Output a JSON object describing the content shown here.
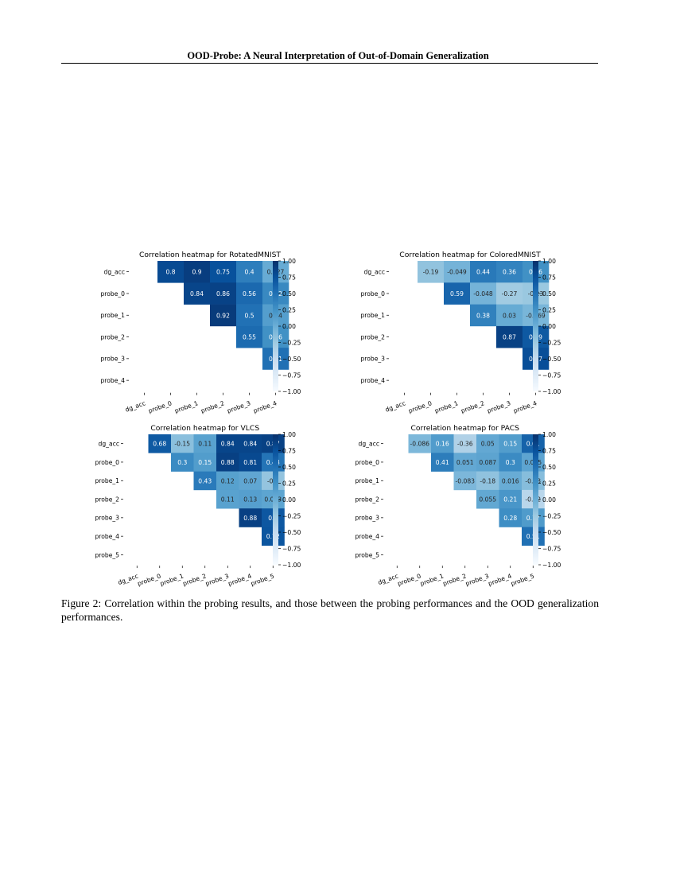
{
  "header": {
    "title": "OOD-Probe: A Neural Interpretation of Out-of-Domain Generalization"
  },
  "caption": {
    "text": "Figure 2: Correlation within the probing results, and those between the probing performances and the OOD generalization performances."
  },
  "colorbar_ticks": [
    "1.00",
    "0.75",
    "0.50",
    "0.25",
    "0.00",
    "−0.25",
    "−0.50",
    "−0.75",
    "−1.00"
  ],
  "palette": {
    "low": "#f7fbff",
    "mid": "#6baed6",
    "high": "#08306b"
  },
  "chart_data": [
    {
      "type": "heatmap",
      "title": "Correlation heatmap for RotatedMNIST",
      "rows": [
        "dg_acc",
        "probe_0",
        "probe_1",
        "probe_2",
        "probe_3",
        "probe_4"
      ],
      "cols": [
        "dg_acc",
        "probe_0",
        "probe_1",
        "probe_2",
        "probe_3",
        "probe_4"
      ],
      "values": [
        [
          null,
          0.8,
          0.9,
          0.75,
          0.4,
          0.027
        ],
        [
          null,
          null,
          0.84,
          0.86,
          0.56,
          0.32
        ],
        [
          null,
          null,
          null,
          0.92,
          0.5,
          0.14
        ],
        [
          null,
          null,
          null,
          null,
          0.55,
          0.26
        ],
        [
          null,
          null,
          null,
          null,
          null,
          0.51
        ],
        [
          null,
          null,
          null,
          null,
          null,
          null
        ]
      ],
      "labels": [
        [
          null,
          "0.8",
          "0.9",
          "0.75",
          "0.4",
          "0.027"
        ],
        [
          null,
          null,
          "0.84",
          "0.86",
          "0.56",
          "0.32"
        ],
        [
          null,
          null,
          null,
          "0.92",
          "0.5",
          "0.14"
        ],
        [
          null,
          null,
          null,
          null,
          "0.55",
          "0.26"
        ],
        [
          null,
          null,
          null,
          null,
          null,
          "0.51"
        ],
        [
          null,
          null,
          null,
          null,
          null,
          null
        ]
      ],
      "vmin": -1,
      "vmax": 1
    },
    {
      "type": "heatmap",
      "title": "Correlation heatmap for ColoredMNIST",
      "rows": [
        "dg_acc",
        "probe_0",
        "probe_1",
        "probe_2",
        "probe_3",
        "probe_4"
      ],
      "cols": [
        "dg_acc",
        "probe_0",
        "probe_1",
        "probe_2",
        "probe_3",
        "probe_4"
      ],
      "values": [
        [
          null,
          -0.19,
          -0.049,
          0.44,
          0.36,
          0.26
        ],
        [
          null,
          null,
          0.59,
          -0.048,
          -0.27,
          -0.23
        ],
        [
          null,
          null,
          null,
          0.38,
          0.03,
          -0.069
        ],
        [
          null,
          null,
          null,
          null,
          0.87,
          0.69
        ],
        [
          null,
          null,
          null,
          null,
          null,
          0.77
        ],
        [
          null,
          null,
          null,
          null,
          null,
          null
        ]
      ],
      "labels": [
        [
          null,
          "-0.19",
          "-0.049",
          "0.44",
          "0.36",
          "0.26"
        ],
        [
          null,
          null,
          "0.59",
          "-0.048",
          "-0.27",
          "-0.23"
        ],
        [
          null,
          null,
          null,
          "0.38",
          "0.03",
          "-0.069"
        ],
        [
          null,
          null,
          null,
          null,
          "0.87",
          "0.69"
        ],
        [
          null,
          null,
          null,
          null,
          null,
          "0.77"
        ],
        [
          null,
          null,
          null,
          null,
          null,
          null
        ]
      ],
      "vmin": -1,
      "vmax": 1
    },
    {
      "type": "heatmap",
      "title": "Correlation heatmap for VLCS",
      "rows": [
        "dg_acc",
        "probe_0",
        "probe_1",
        "probe_2",
        "probe_3",
        "probe_4",
        "probe_5"
      ],
      "cols": [
        "dg_acc",
        "probe_0",
        "probe_1",
        "probe_2",
        "probe_3",
        "probe_4",
        "probe_5"
      ],
      "values": [
        [
          null,
          0.68,
          -0.15,
          0.11,
          0.84,
          0.84,
          0.87
        ],
        [
          null,
          null,
          0.3,
          0.15,
          0.88,
          0.81,
          0.48
        ],
        [
          null,
          null,
          null,
          0.43,
          0.12,
          0.07,
          -0.2
        ],
        [
          null,
          null,
          null,
          null,
          0.11,
          0.13,
          0.083
        ],
        [
          null,
          null,
          null,
          null,
          null,
          0.88,
          0.7
        ],
        [
          null,
          null,
          null,
          null,
          null,
          null,
          0.72
        ],
        [
          null,
          null,
          null,
          null,
          null,
          null,
          null
        ]
      ],
      "labels": [
        [
          null,
          "0.68",
          "-0.15",
          "0.11",
          "0.84",
          "0.84",
          "0.87"
        ],
        [
          null,
          null,
          "0.3",
          "0.15",
          "0.88",
          "0.81",
          "0.48"
        ],
        [
          null,
          null,
          null,
          "0.43",
          "0.12",
          "0.07",
          "-0.2"
        ],
        [
          null,
          null,
          null,
          null,
          "0.11",
          "0.13",
          "0.083"
        ],
        [
          null,
          null,
          null,
          null,
          null,
          "0.88",
          "0.7"
        ],
        [
          null,
          null,
          null,
          null,
          null,
          null,
          "0.72"
        ],
        [
          null,
          null,
          null,
          null,
          null,
          null,
          null
        ]
      ],
      "vmin": -1,
      "vmax": 1
    },
    {
      "type": "heatmap",
      "title": "Correlation heatmap for PACS",
      "rows": [
        "dg_acc",
        "probe_0",
        "probe_1",
        "probe_2",
        "probe_3",
        "probe_4",
        "probe_5"
      ],
      "cols": [
        "dg_acc",
        "probe_0",
        "probe_1",
        "probe_2",
        "probe_3",
        "probe_4",
        "probe_5"
      ],
      "values": [
        [
          null,
          -0.086,
          0.16,
          -0.36,
          0.05,
          0.15,
          0.61
        ],
        [
          null,
          null,
          0.41,
          0.051,
          0.087,
          0.3,
          0.085
        ],
        [
          null,
          null,
          null,
          -0.083,
          -0.18,
          0.016,
          -0.13
        ],
        [
          null,
          null,
          null,
          null,
          0.055,
          0.21,
          -0.42
        ],
        [
          null,
          null,
          null,
          null,
          null,
          0.28,
          0.17
        ],
        [
          null,
          null,
          null,
          null,
          null,
          null,
          0.51
        ],
        [
          null,
          null,
          null,
          null,
          null,
          null,
          null
        ]
      ],
      "labels": [
        [
          null,
          "-0.086",
          "0.16",
          "-0.36",
          "0.05",
          "0.15",
          "0.61"
        ],
        [
          null,
          null,
          "0.41",
          "0.051",
          "0.087",
          "0.3",
          "0.085"
        ],
        [
          null,
          null,
          null,
          "-0.083",
          "-0.18",
          "0.016",
          "-0.13"
        ],
        [
          null,
          null,
          null,
          null,
          "0.055",
          "0.21",
          "-0.42"
        ],
        [
          null,
          null,
          null,
          null,
          null,
          "0.28",
          "0.17"
        ],
        [
          null,
          null,
          null,
          null,
          null,
          null,
          "0.51"
        ],
        [
          null,
          null,
          null,
          null,
          null,
          null,
          null
        ]
      ],
      "vmin": -1,
      "vmax": 1
    }
  ]
}
